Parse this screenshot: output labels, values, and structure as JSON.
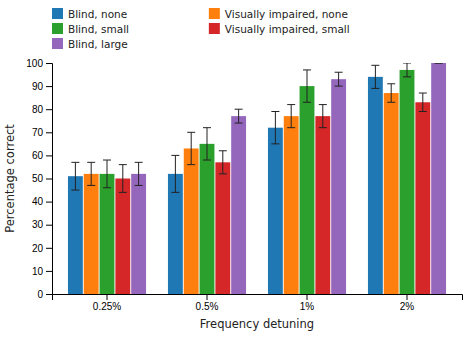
{
  "chart_data": {
    "type": "bar",
    "categories": [
      "0.25%",
      "0.5%",
      "1%",
      "2%"
    ],
    "series": [
      {
        "name": "Blind, none",
        "values": [
          51,
          52,
          72,
          94
        ],
        "errors": [
          6,
          8,
          7,
          5
        ]
      },
      {
        "name": "Visually impaired, none",
        "values": [
          52,
          63,
          77,
          87
        ],
        "errors": [
          5,
          7,
          5,
          4
        ]
      },
      {
        "name": "Blind, small",
        "values": [
          52,
          65,
          90,
          97
        ],
        "errors": [
          6,
          7,
          7,
          3
        ]
      },
      {
        "name": "Visually impaired, small",
        "values": [
          50,
          57,
          77,
          83
        ],
        "errors": [
          6,
          5,
          5,
          4
        ]
      },
      {
        "name": "Blind, large",
        "values": [
          52,
          77,
          93,
          100
        ],
        "errors": [
          5,
          3,
          3,
          0
        ]
      }
    ],
    "xlabel": "Frequency detuning",
    "ylabel": "Percentage correct",
    "ylim": [
      0,
      100
    ],
    "yticks": [
      0,
      10,
      20,
      30,
      40,
      50,
      60,
      70,
      80,
      90,
      100
    ],
    "grid": false,
    "legend": "upper left"
  }
}
